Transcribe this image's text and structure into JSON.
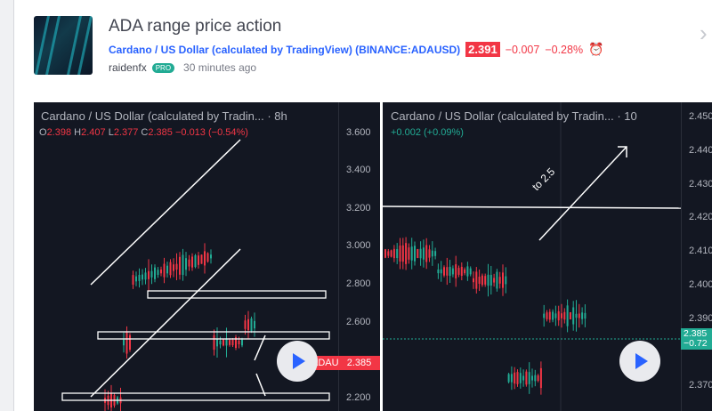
{
  "post": {
    "title": "ADA range price action",
    "symbol_link": "Cardano / US Dollar (calculated by TradingView) (BINANCE:ADAUSD)",
    "price": "2.391",
    "change": "−0.007",
    "change_pct": "−0.28%",
    "author": "raidenfx",
    "badge": "PRO",
    "time": "30 minutes ago"
  },
  "chart_left": {
    "title": "Cardano / US Dollar (calculated by Tradin...",
    "interval": "· 8h",
    "o_label": "O",
    "o": "2.398",
    "h_label": "H",
    "h": "2.407",
    "l_label": "L",
    "l": "2.377",
    "c_label": "C",
    "c": "2.385",
    "chg": "−0.013 (−0.54%)",
    "ticks": [
      "3.600",
      "3.400",
      "3.200",
      "3.000",
      "2.800",
      "2.600",
      "2.200"
    ],
    "symbol_tag": "ADAUSD",
    "last_price": "2.385"
  },
  "chart_right": {
    "title": "Cardano / US Dollar (calculated by Tradin...",
    "interval": "· 10",
    "chg": "+0.002 (+0.09%)",
    "ticks": [
      "2.450",
      "2.440",
      "2.430",
      "2.420",
      "2.410",
      "2.400",
      "2.390",
      "2.370"
    ],
    "last_price": "2.385",
    "last_chg": "−0.72",
    "annotation": "to 2.5"
  },
  "colors": {
    "accent": "#2962ff",
    "down": "#f23645",
    "up": "#22ab94",
    "chart_bg": "#131722"
  }
}
